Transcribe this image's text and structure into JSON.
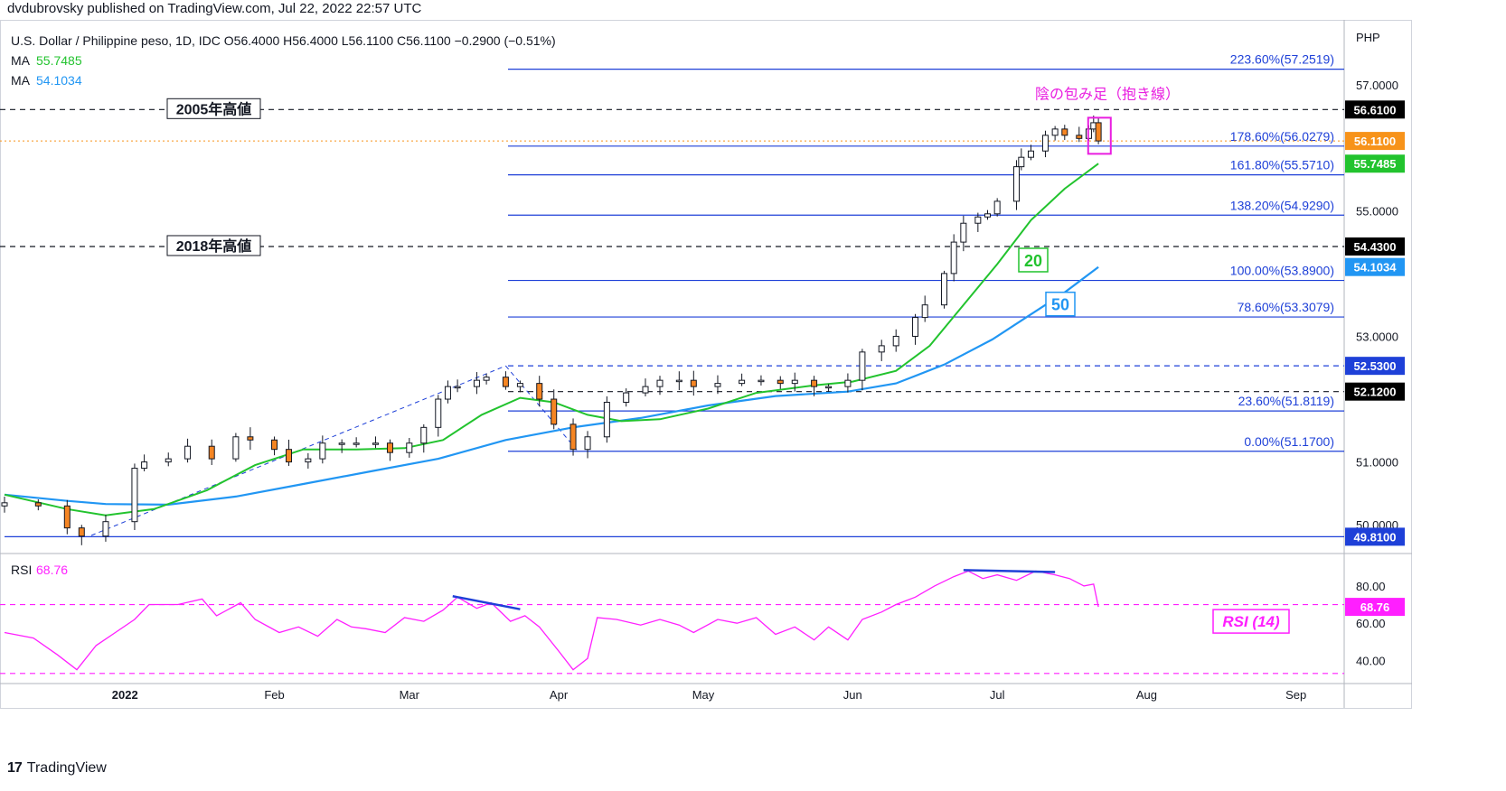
{
  "header": {
    "publisher": "dvdubrovsky published on TradingView.com, Jul 22, 2022 22:57 UTC",
    "symbol_line": "U.S. Dollar / Philippine peso, 1D, IDC  O56.4000  H56.4000  L56.1100  C56.1100  −0.2900 (−0.51%)",
    "ma1_label": "MA",
    "ma1_value": "55.7485",
    "ma2_label": "MA",
    "ma2_value": "54.1034"
  },
  "footer": {
    "logo": "17",
    "brand": "TradingView"
  },
  "chart_data": {
    "type": "candlestick",
    "currency": "PHP",
    "price_range": [
      49.6,
      57.75
    ],
    "price_ticks": [
      50.0,
      51.0,
      53.0,
      55.0,
      57.0
    ],
    "date_range": [
      "2021-12-07",
      "2022-09-05"
    ],
    "x_ticks": [
      {
        "date": "2022-01-01",
        "label": "2022"
      },
      {
        "date": "2022-02-01",
        "label": "Feb"
      },
      {
        "date": "2022-03-01",
        "label": "Mar"
      },
      {
        "date": "2022-04-01",
        "label": "Apr"
      },
      {
        "date": "2022-05-01",
        "label": "May"
      },
      {
        "date": "2022-06-01",
        "label": "Jun"
      },
      {
        "date": "2022-07-01",
        "label": "Jul"
      },
      {
        "date": "2022-08-01",
        "label": "Aug"
      },
      {
        "date": "2022-09-01",
        "label": "Sep"
      }
    ],
    "close_path": [
      [
        "2021-12-07",
        50.35
      ],
      [
        "2021-12-14",
        50.3
      ],
      [
        "2021-12-20",
        49.95
      ],
      [
        "2021-12-23",
        49.82
      ],
      [
        "2021-12-28",
        50.05
      ],
      [
        "2022-01-03",
        50.9
      ],
      [
        "2022-01-05",
        51.0
      ],
      [
        "2022-01-10",
        51.05
      ],
      [
        "2022-01-14",
        51.25
      ],
      [
        "2022-01-19",
        51.05
      ],
      [
        "2022-01-24",
        51.4
      ],
      [
        "2022-01-27",
        51.35
      ],
      [
        "2022-02-01",
        51.2
      ],
      [
        "2022-02-04",
        51.0
      ],
      [
        "2022-02-08",
        51.05
      ],
      [
        "2022-02-11",
        51.3
      ],
      [
        "2022-02-15",
        51.3
      ],
      [
        "2022-02-18",
        51.3
      ],
      [
        "2022-02-22",
        51.3
      ],
      [
        "2022-02-25",
        51.15
      ],
      [
        "2022-03-01",
        51.3
      ],
      [
        "2022-03-04",
        51.55
      ],
      [
        "2022-03-07",
        52.0
      ],
      [
        "2022-03-09",
        52.2
      ],
      [
        "2022-03-11",
        52.2
      ],
      [
        "2022-03-15",
        52.3
      ],
      [
        "2022-03-17",
        52.35
      ],
      [
        "2022-03-21",
        52.2
      ],
      [
        "2022-03-24",
        52.25
      ],
      [
        "2022-03-28",
        52.0
      ],
      [
        "2022-03-31",
        51.6
      ],
      [
        "2022-04-04",
        51.2
      ],
      [
        "2022-04-07",
        51.4
      ],
      [
        "2022-04-11",
        51.95
      ],
      [
        "2022-04-15",
        52.1
      ],
      [
        "2022-04-19",
        52.2
      ],
      [
        "2022-04-22",
        52.3
      ],
      [
        "2022-04-26",
        52.3
      ],
      [
        "2022-04-29",
        52.2
      ],
      [
        "2022-05-04",
        52.25
      ],
      [
        "2022-05-09",
        52.3
      ],
      [
        "2022-05-13",
        52.3
      ],
      [
        "2022-05-17",
        52.25
      ],
      [
        "2022-05-20",
        52.3
      ],
      [
        "2022-05-24",
        52.2
      ],
      [
        "2022-05-27",
        52.2
      ],
      [
        "2022-05-31",
        52.3
      ],
      [
        "2022-06-03",
        52.75
      ],
      [
        "2022-06-07",
        52.85
      ],
      [
        "2022-06-10",
        53.0
      ],
      [
        "2022-06-14",
        53.3
      ],
      [
        "2022-06-16",
        53.5
      ],
      [
        "2022-06-20",
        54.0
      ],
      [
        "2022-06-22",
        54.5
      ],
      [
        "2022-06-24",
        54.8
      ],
      [
        "2022-06-27",
        54.9
      ],
      [
        "2022-06-29",
        54.95
      ],
      [
        "2022-07-01",
        55.15
      ],
      [
        "2022-07-05",
        55.7
      ],
      [
        "2022-07-06",
        55.85
      ],
      [
        "2022-07-08",
        55.95
      ],
      [
        "2022-07-11",
        56.2
      ],
      [
        "2022-07-13",
        56.3
      ],
      [
        "2022-07-15",
        56.2
      ],
      [
        "2022-07-18",
        56.15
      ],
      [
        "2022-07-20",
        56.3
      ],
      [
        "2022-07-21",
        56.4
      ],
      [
        "2022-07-22",
        56.11
      ]
    ],
    "ma20_path": [
      [
        "2021-12-07",
        50.48
      ],
      [
        "2021-12-20",
        50.25
      ],
      [
        "2021-12-28",
        50.15
      ],
      [
        "2022-01-07",
        50.25
      ],
      [
        "2022-01-18",
        50.55
      ],
      [
        "2022-01-28",
        50.95
      ],
      [
        "2022-02-07",
        51.2
      ],
      [
        "2022-02-18",
        51.2
      ],
      [
        "2022-02-28",
        51.22
      ],
      [
        "2022-03-08",
        51.35
      ],
      [
        "2022-03-16",
        51.75
      ],
      [
        "2022-03-24",
        52.02
      ],
      [
        "2022-03-31",
        51.95
      ],
      [
        "2022-04-07",
        51.75
      ],
      [
        "2022-04-14",
        51.65
      ],
      [
        "2022-04-22",
        51.68
      ],
      [
        "2022-05-02",
        51.85
      ],
      [
        "2022-05-12",
        52.1
      ],
      [
        "2022-05-24",
        52.22
      ],
      [
        "2022-06-01",
        52.28
      ],
      [
        "2022-06-10",
        52.45
      ],
      [
        "2022-06-17",
        52.85
      ],
      [
        "2022-06-24",
        53.5
      ],
      [
        "2022-07-01",
        54.15
      ],
      [
        "2022-07-08",
        54.85
      ],
      [
        "2022-07-15",
        55.35
      ],
      [
        "2022-07-22",
        55.7485
      ]
    ],
    "ma50_path": [
      [
        "2021-12-07",
        50.48
      ],
      [
        "2021-12-20",
        50.38
      ],
      [
        "2021-12-28",
        50.33
      ],
      [
        "2022-01-10",
        50.32
      ],
      [
        "2022-01-24",
        50.45
      ],
      [
        "2022-02-07",
        50.65
      ],
      [
        "2022-02-21",
        50.85
      ],
      [
        "2022-03-07",
        51.05
      ],
      [
        "2022-03-21",
        51.35
      ],
      [
        "2022-04-04",
        51.55
      ],
      [
        "2022-04-18",
        51.7
      ],
      [
        "2022-05-02",
        51.9
      ],
      [
        "2022-05-16",
        52.05
      ],
      [
        "2022-05-31",
        52.12
      ],
      [
        "2022-06-10",
        52.25
      ],
      [
        "2022-06-20",
        52.55
      ],
      [
        "2022-06-30",
        52.95
      ],
      [
        "2022-07-08",
        53.35
      ],
      [
        "2022-07-15",
        53.7
      ],
      [
        "2022-07-22",
        54.1034
      ]
    ],
    "horizontal_lines": [
      {
        "price": 56.61,
        "style": "dashed",
        "label": "2005年高値"
      },
      {
        "price": 54.43,
        "style": "dashed",
        "label": "2018年高値"
      },
      {
        "price": 52.53,
        "style": "dashed",
        "label": ""
      },
      {
        "price": 52.12,
        "style": "dashed",
        "label": ""
      }
    ],
    "fibonacci": [
      {
        "label": "223.60%(57.2519)",
        "price": 57.2519
      },
      {
        "label": "178.60%(56.0279)",
        "price": 56.0279
      },
      {
        "label": "161.80%(55.5710)",
        "price": 55.571
      },
      {
        "label": "138.20%(54.9290)",
        "price": 54.929
      },
      {
        "label": "100.00%(53.8900)",
        "price": 53.89
      },
      {
        "label": "78.60%(53.3079)",
        "price": 53.3079
      },
      {
        "label": "23.60%(51.8119)",
        "price": 51.8119
      },
      {
        "label": "0.00%(51.1700)",
        "price": 51.17
      }
    ],
    "price_badges": [
      {
        "text": "56.6100",
        "price": 56.61,
        "color": "#000000"
      },
      {
        "text": "56.1100",
        "price": 56.11,
        "color": "#f7931a"
      },
      {
        "text": "55.7485",
        "price": 55.7485,
        "color": "#22c32e"
      },
      {
        "text": "54.4300",
        "price": 54.43,
        "color": "#000000"
      },
      {
        "text": "54.1034",
        "price": 54.1034,
        "color": "#2196f3"
      },
      {
        "text": "52.5300",
        "price": 52.53,
        "color": "#1e40d8"
      },
      {
        "text": "52.1200",
        "price": 52.12,
        "color": "#000000"
      },
      {
        "text": "49.8100",
        "price": 49.81,
        "color": "#1e40d8"
      }
    ],
    "annotations": {
      "engulfing": "陰の包み足（抱き線）",
      "ma20_tag": "20",
      "ma50_tag": "50",
      "rsi_tag": "RSI (14)"
    },
    "rsi": {
      "label": "RSI",
      "value": "68.76",
      "range": [
        30,
        95
      ],
      "ticks": [
        40,
        60,
        80
      ],
      "tick_labels": [
        "40.00",
        "60.00",
        "80.00"
      ],
      "bands": [
        70,
        33
      ],
      "path": [
        [
          "2021-12-07",
          55
        ],
        [
          "2021-12-13",
          52
        ],
        [
          "2021-12-18",
          43
        ],
        [
          "2021-12-22",
          35
        ],
        [
          "2021-12-26",
          48
        ],
        [
          "2021-12-30",
          55
        ],
        [
          "2022-01-03",
          62
        ],
        [
          "2022-01-06",
          70
        ],
        [
          "2022-01-12",
          70
        ],
        [
          "2022-01-17",
          73
        ],
        [
          "2022-01-20",
          64
        ],
        [
          "2022-01-25",
          71
        ],
        [
          "2022-01-28",
          62
        ],
        [
          "2022-02-02",
          55
        ],
        [
          "2022-02-06",
          58
        ],
        [
          "2022-02-10",
          53
        ],
        [
          "2022-02-14",
          62
        ],
        [
          "2022-02-17",
          58
        ],
        [
          "2022-02-20",
          57
        ],
        [
          "2022-02-24",
          55
        ],
        [
          "2022-02-28",
          63
        ],
        [
          "2022-03-04",
          61
        ],
        [
          "2022-03-08",
          67
        ],
        [
          "2022-03-11",
          74
        ],
        [
          "2022-03-15",
          68
        ],
        [
          "2022-03-18",
          71
        ],
        [
          "2022-03-22",
          61
        ],
        [
          "2022-03-25",
          64
        ],
        [
          "2022-03-28",
          58
        ],
        [
          "2022-04-01",
          45
        ],
        [
          "2022-04-04",
          35
        ],
        [
          "2022-04-07",
          41
        ],
        [
          "2022-04-09",
          63
        ],
        [
          "2022-04-13",
          62
        ],
        [
          "2022-04-18",
          59
        ],
        [
          "2022-04-22",
          62
        ],
        [
          "2022-04-26",
          59
        ],
        [
          "2022-04-29",
          55
        ],
        [
          "2022-05-04",
          62
        ],
        [
          "2022-05-08",
          60
        ],
        [
          "2022-05-12",
          63
        ],
        [
          "2022-05-16",
          54
        ],
        [
          "2022-05-20",
          58
        ],
        [
          "2022-05-24",
          51
        ],
        [
          "2022-05-27",
          58
        ],
        [
          "2022-05-31",
          51
        ],
        [
          "2022-06-03",
          62
        ],
        [
          "2022-06-07",
          66
        ],
        [
          "2022-06-10",
          70
        ],
        [
          "2022-06-14",
          74
        ],
        [
          "2022-06-18",
          80
        ],
        [
          "2022-06-22",
          85
        ],
        [
          "2022-06-25",
          88
        ],
        [
          "2022-06-28",
          84
        ],
        [
          "2022-07-01",
          86
        ],
        [
          "2022-07-05",
          83
        ],
        [
          "2022-07-09",
          88
        ],
        [
          "2022-07-13",
          86
        ],
        [
          "2022-07-16",
          84
        ],
        [
          "2022-07-19",
          80
        ],
        [
          "2022-07-21",
          81
        ],
        [
          "2022-07-22",
          68.76
        ]
      ],
      "divergence_lines": [
        [
          [
            "2022-03-10",
            74.5
          ],
          [
            "2022-03-24",
            67.5
          ]
        ],
        [
          [
            "2022-06-24",
            88.5
          ],
          [
            "2022-07-13",
            87.5
          ]
        ]
      ]
    }
  },
  "colors": {
    "bull": "#ffffff",
    "bear": "#f58523",
    "wick": "#131722",
    "ma20": "#22c32e",
    "ma50": "#2196f3",
    "fib": "#1e40d8",
    "rsi": "#ff1fff",
    "magenta": "#e91ee0",
    "grid": "#e0e3eb"
  }
}
